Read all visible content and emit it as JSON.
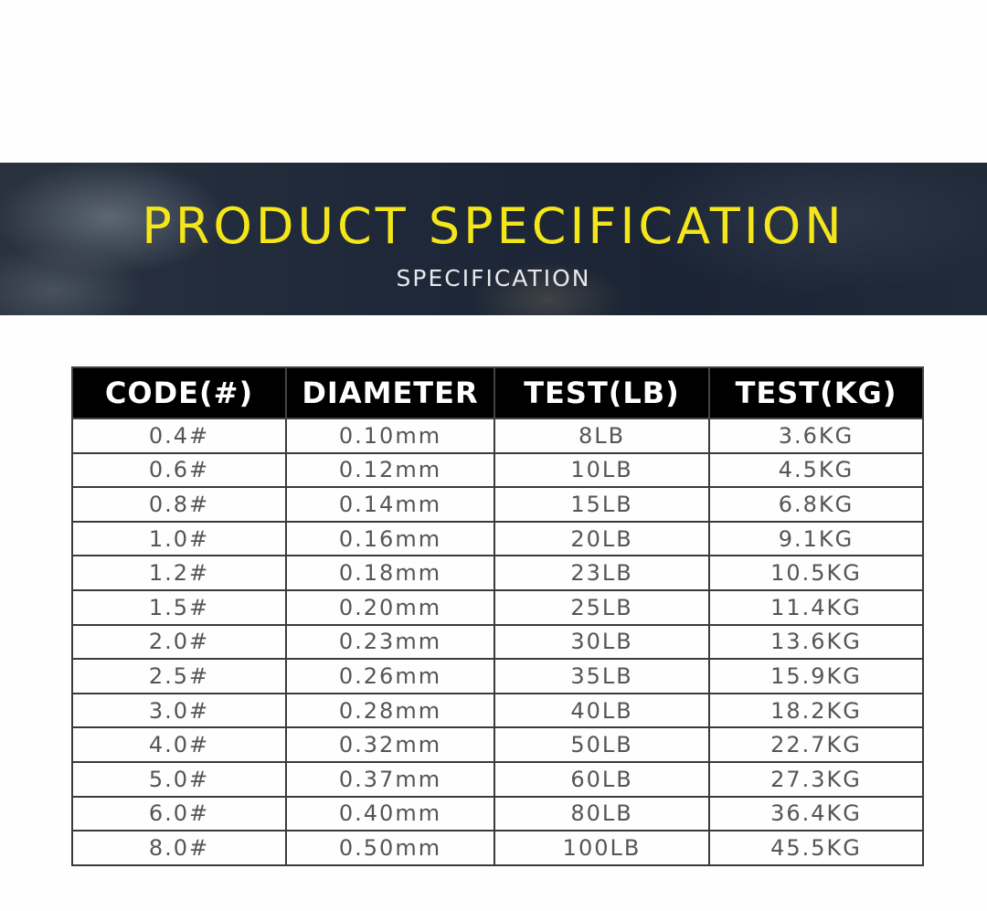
{
  "banner": {
    "title": "PRODUCT SPECIFICATION",
    "subtitle": "SPECIFICATION"
  },
  "table": {
    "headers": [
      "CODE(#)",
      "DIAMETER",
      "TEST(LB)",
      "TEST(KG)"
    ],
    "rows": [
      [
        "0.4#",
        "0.10mm",
        "8LB",
        "3.6KG"
      ],
      [
        "0.6#",
        "0.12mm",
        "10LB",
        "4.5KG"
      ],
      [
        "0.8#",
        "0.14mm",
        "15LB",
        "6.8KG"
      ],
      [
        "1.0#",
        "0.16mm",
        "20LB",
        "9.1KG"
      ],
      [
        "1.2#",
        "0.18mm",
        "23LB",
        "10.5KG"
      ],
      [
        "1.5#",
        "0.20mm",
        "25LB",
        "11.4KG"
      ],
      [
        "2.0#",
        "0.23mm",
        "30LB",
        "13.6KG"
      ],
      [
        "2.5#",
        "0.26mm",
        "35LB",
        "15.9KG"
      ],
      [
        "3.0#",
        "0.28mm",
        "40LB",
        "18.2KG"
      ],
      [
        "4.0#",
        "0.32mm",
        "50LB",
        "22.7KG"
      ],
      [
        "5.0#",
        "0.37mm",
        "60LB",
        "27.3KG"
      ],
      [
        "6.0#",
        "0.40mm",
        "80LB",
        "36.4KG"
      ],
      [
        "8.0#",
        "0.50mm",
        "100LB",
        "45.5KG"
      ]
    ]
  },
  "colors": {
    "title": "#f3e61b",
    "header_bg": "#000000"
  }
}
